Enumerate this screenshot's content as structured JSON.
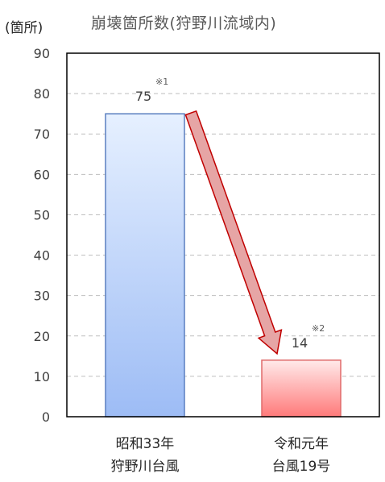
{
  "unit_label": "(箇所)",
  "chart_data": {
    "type": "bar",
    "title": "崩壊箇所数(狩野川流域内)",
    "ylim": [
      0,
      90
    ],
    "yticks": [
      0,
      10,
      20,
      30,
      40,
      50,
      60,
      70,
      80,
      90
    ],
    "grid": true,
    "categories": [
      [
        "昭和33年",
        "狩野川台風"
      ],
      [
        "令和元年",
        "台風19号"
      ]
    ],
    "values": [
      75,
      14
    ],
    "value_labels": [
      "75",
      "14"
    ],
    "notes": [
      "※1",
      "※2"
    ],
    "colors": [
      "#9dbcf5",
      "#ff7a7a"
    ],
    "border_colors": [
      "#5a7fc0",
      "#e06a6a"
    ],
    "arrow": {
      "from_category": 0,
      "to_category": 1,
      "color": "#e6a5a5",
      "stroke": "#c00000"
    }
  }
}
